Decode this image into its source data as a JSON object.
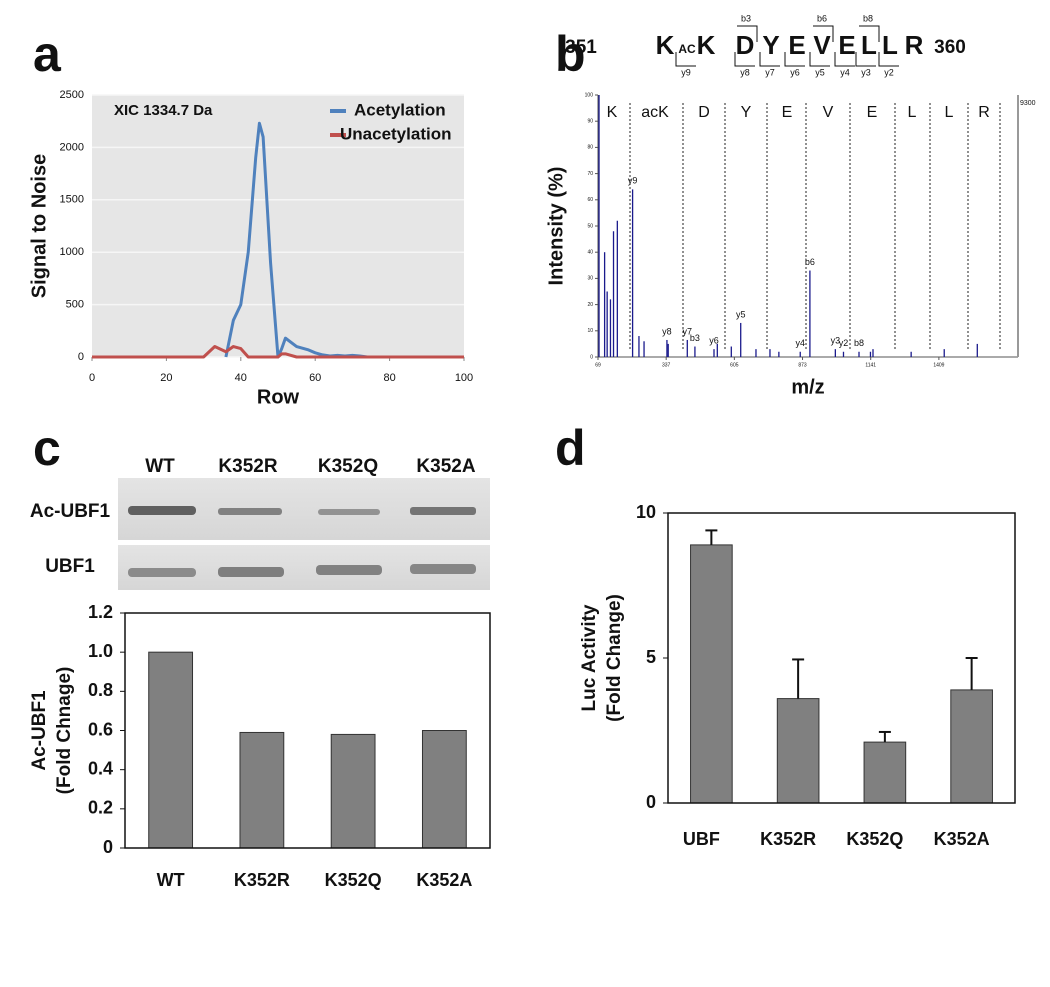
{
  "chart_data": [
    {
      "type": "line",
      "panel": "a",
      "annotation": "XIC 1334.7 Da",
      "xlabel": "Row",
      "ylabel": "Signal to Noise",
      "x": [
        0,
        30,
        33,
        36,
        38,
        40,
        42,
        44,
        45,
        46,
        48,
        50,
        51,
        52,
        55,
        58,
        60,
        62,
        64,
        66,
        68,
        70,
        72,
        74,
        100
      ],
      "series": [
        {
          "name": "Acetylation",
          "color": "#4f81bd",
          "values": [
            null,
            null,
            null,
            0,
            350,
            500,
            1000,
            1900,
            2230,
            2100,
            900,
            0,
            80,
            180,
            100,
            70,
            40,
            20,
            10,
            15,
            10,
            15,
            10,
            0,
            null
          ]
        },
        {
          "name": "Unacetylation",
          "color": "#c0504d",
          "values": [
            0,
            0,
            100,
            50,
            100,
            80,
            0,
            0,
            0,
            0,
            0,
            0,
            30,
            30,
            0,
            0,
            0,
            0,
            0,
            0,
            0,
            0,
            0,
            0,
            0
          ]
        }
      ],
      "xlim": [
        0,
        100
      ],
      "xticks": [
        0,
        20,
        40,
        60,
        80,
        100
      ],
      "ylim": [
        0,
        2500
      ],
      "yticks": [
        0,
        500,
        1000,
        1500,
        2000,
        2500
      ],
      "grid": true
    },
    {
      "type": "spectrum",
      "panel": "b",
      "xlabel": "m/z",
      "ylabel": "Intensity (%)",
      "annotation": "9300",
      "color": "#1a1a8c",
      "sequence": {
        "start": "351",
        "end": "360",
        "modification": "AC",
        "residues": [
          "K",
          "K",
          "D",
          "Y",
          "E",
          "V",
          "E",
          "L",
          "L",
          "R"
        ],
        "b_ions": [
          "b3",
          "b6",
          "b8"
        ],
        "y_ions": [
          "y9",
          "y8",
          "y7",
          "y6",
          "y5",
          "y4",
          "y3",
          "y2"
        ]
      },
      "residue_labels": [
        "K",
        "acK",
        "D",
        "Y",
        "E",
        "V",
        "E",
        "L",
        "L",
        "R"
      ],
      "x": [
        73,
        95,
        105,
        118,
        130,
        145,
        205,
        230,
        250,
        340,
        345,
        420,
        450,
        525,
        538,
        593,
        630,
        690,
        745,
        780,
        864,
        902,
        1002,
        1034,
        1095,
        1140,
        1150,
        1300,
        1430,
        1560
      ],
      "values": [
        100,
        40,
        25,
        22,
        48,
        52,
        64,
        8,
        6,
        6.5,
        5,
        6.5,
        4,
        3,
        5,
        4,
        13,
        3,
        3,
        2,
        2,
        33,
        3,
        2,
        2,
        2,
        3,
        2,
        3,
        5
      ],
      "peak_labels": [
        null,
        null,
        null,
        null,
        null,
        null,
        "y9",
        null,
        null,
        "y8",
        null,
        "y7",
        "b3",
        "y6",
        null,
        null,
        "y5",
        null,
        null,
        null,
        "y4",
        "b6",
        "y3",
        "y2",
        "b8",
        null,
        null,
        null,
        null,
        null
      ],
      "xlim": [
        69,
        1720
      ],
      "xticks": [
        69,
        337,
        605,
        873,
        1141,
        1409
      ],
      "ylim": [
        0,
        100
      ],
      "yticks": [
        0,
        10,
        20,
        30,
        40,
        50,
        60,
        70,
        80,
        90,
        100
      ]
    },
    {
      "type": "bar",
      "panel": "c",
      "ylabel": [
        "Ac-UBF1",
        "(Fold Chnage)"
      ],
      "color": "#808080",
      "categories": [
        "WT",
        "K352R",
        "K352Q",
        "K352A"
      ],
      "values": [
        1.0,
        0.59,
        0.58,
        0.6
      ],
      "ylim": [
        0,
        1.2
      ],
      "yticks": [
        0,
        0.2,
        0.4,
        0.6,
        0.8,
        {
          "value": 1,
          "label": "1.0"
        },
        1.2
      ]
    },
    {
      "type": "bar",
      "panel": "d",
      "ylabel": [
        "Luc Activity",
        "(Fold Change)"
      ],
      "color": "#808080",
      "categories": [
        "UBF",
        "K352R",
        "K352Q",
        "K352A"
      ],
      "values": [
        8.9,
        3.6,
        2.1,
        3.9
      ],
      "errors": [
        0.5,
        1.35,
        0.35,
        1.1
      ],
      "ylim": [
        0,
        10
      ],
      "yticks": [
        0,
        5,
        10
      ]
    }
  ],
  "blot": {
    "lanes": [
      "WT",
      "K352R",
      "K352Q",
      "K352A"
    ],
    "rows": [
      "Ac-UBF1",
      "UBF1"
    ]
  }
}
